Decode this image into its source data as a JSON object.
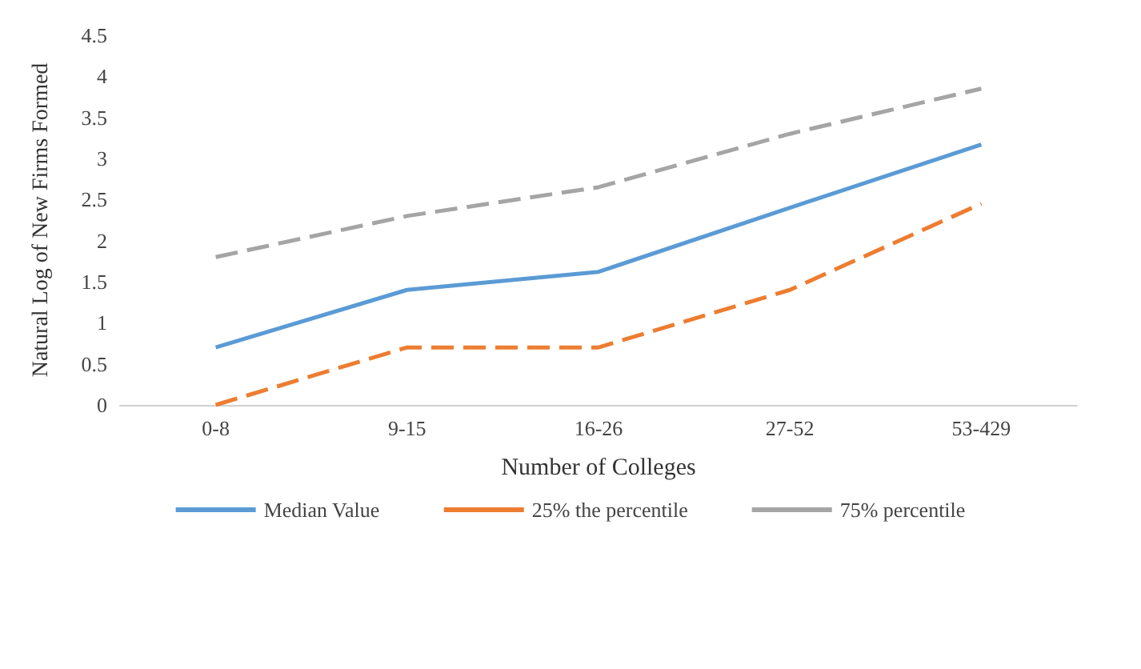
{
  "chart_data": {
    "type": "line",
    "xlabel": "Number of Colleges",
    "ylabel": "Natural Log of New Firms Formed",
    "categories": [
      "0-8",
      "9-15",
      "16-26",
      "27-52",
      "53-429"
    ],
    "series": [
      {
        "name": "Median Value",
        "color": "#5b9bd5",
        "line_style": "solid",
        "values": [
          0.7,
          1.4,
          1.62,
          2.4,
          3.17
        ]
      },
      {
        "name": "25% the percentile",
        "color": "#ed7d31",
        "line_style": "dashed",
        "values": [
          0,
          0.7,
          0.7,
          1.4,
          2.45
        ]
      },
      {
        "name": "75% percentile",
        "color": "#a5a5a5",
        "line_style": "dashed",
        "values": [
          1.8,
          2.3,
          2.65,
          3.3,
          3.85
        ]
      }
    ],
    "ylim": [
      0,
      4.5
    ],
    "yticks": [
      0,
      0.5,
      1,
      1.5,
      2,
      2.5,
      3,
      3.5,
      4,
      4.5
    ],
    "grid": false,
    "legend": "bottom",
    "marker": "none"
  }
}
